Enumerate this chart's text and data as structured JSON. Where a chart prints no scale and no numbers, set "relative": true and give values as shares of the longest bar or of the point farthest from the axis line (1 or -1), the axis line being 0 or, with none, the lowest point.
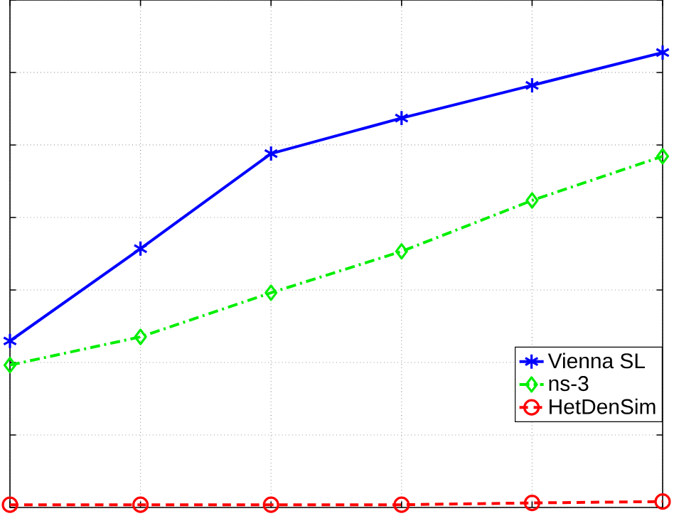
{
  "chart_data": {
    "type": "line",
    "relative": true,
    "grid": true,
    "legend": "right",
    "tick_labels": false,
    "categories": [
      null,
      null,
      null,
      null,
      null,
      null
    ],
    "series": [
      {
        "name": "Vienna SL",
        "color": "#0000ff",
        "marker": "cross",
        "line_style": "solid",
        "values": [
          0.366,
          0.569,
          0.778,
          0.856,
          0.928,
          1.0
        ]
      },
      {
        "name": "ns-3",
        "color": "#00ee00",
        "marker": "diamond",
        "line_style": "dashdot",
        "values": [
          0.313,
          0.375,
          0.472,
          0.563,
          0.675,
          0.772
        ]
      },
      {
        "name": "HetDenSim",
        "color": "#ff0000",
        "marker": "circle",
        "line_style": "dashed",
        "values": [
          0.006,
          0.006,
          0.006,
          0.006,
          0.01,
          0.013
        ]
      }
    ]
  }
}
